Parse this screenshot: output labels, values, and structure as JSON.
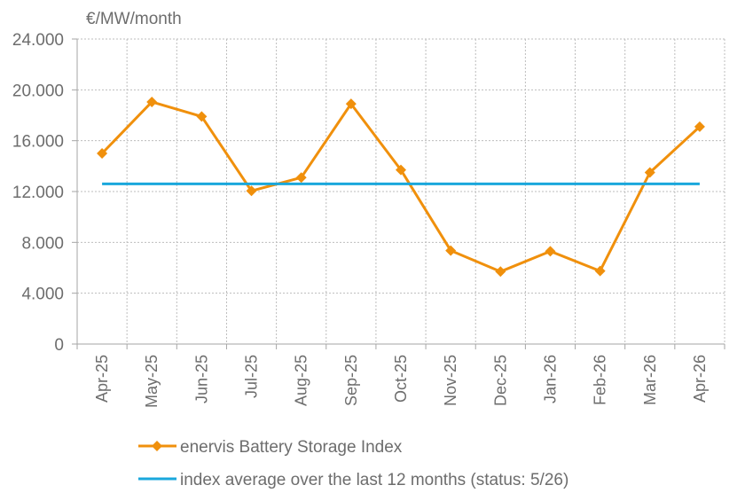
{
  "chart_data": {
    "type": "line",
    "y_unit": "€/MW/month",
    "categories": [
      "Apr-25",
      "May-25",
      "Jun-25",
      "Jul-25",
      "Aug-25",
      "Sep-25",
      "Oct-25",
      "Nov-25",
      "Dec-25",
      "Jan-26",
      "Feb-26",
      "Mar-26",
      "Apr-26"
    ],
    "ylim": [
      0,
      24000
    ],
    "y_ticks": [
      0,
      4000,
      8000,
      12000,
      16000,
      20000,
      24000
    ],
    "y_tick_labels": [
      "0",
      "4.000",
      "8.000",
      "12.000",
      "16.000",
      "20.000",
      "24.000"
    ],
    "grid": true,
    "legend_position": "bottom-center",
    "series": [
      {
        "name": "enervis Battery Storage Index",
        "color": "#f0900c",
        "marker": "diamond",
        "values": [
          15000,
          19050,
          17900,
          12050,
          13100,
          18900,
          13700,
          7350,
          5700,
          7300,
          5750,
          13500,
          17100
        ]
      },
      {
        "name": "index average over the last 12 months (status: 5/26)",
        "color": "#1aa7dc",
        "marker": "none",
        "values": [
          12600,
          12600,
          12600,
          12600,
          12600,
          12600,
          12600,
          12600,
          12600,
          12600,
          12600,
          12600,
          12600
        ]
      }
    ]
  }
}
